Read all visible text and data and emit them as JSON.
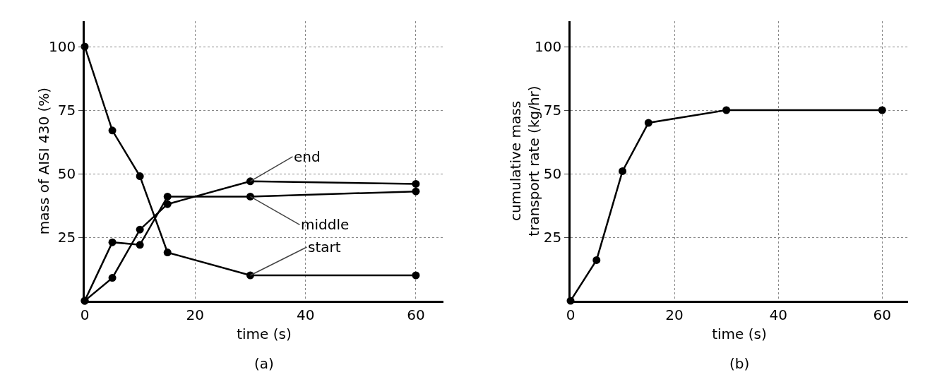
{
  "chart_data": [
    {
      "type": "line",
      "title": "(a)",
      "xlabel": "time (s)",
      "ylabel": "mass of AISI 430 (%)",
      "x": [
        0,
        5,
        10,
        15,
        30,
        60
      ],
      "xlim": [
        0,
        65
      ],
      "xticks": [
        0,
        20,
        40,
        60
      ],
      "ylim": [
        0,
        110
      ],
      "yticks": [
        25,
        50,
        75,
        100
      ],
      "grid": true,
      "legend": false,
      "marker": "circle",
      "line_style": "solid",
      "series": [
        {
          "name": "start",
          "color": "#000000",
          "values": [
            100,
            67,
            49,
            19,
            10,
            10
          ]
        },
        {
          "name": "middle",
          "color": "#000000",
          "values": [
            0,
            23,
            22,
            41,
            41,
            43
          ]
        },
        {
          "name": "end",
          "color": "#000000",
          "values": [
            0,
            9,
            28,
            38,
            47,
            46
          ]
        }
      ]
    },
    {
      "type": "line",
      "title": "(b)",
      "xlabel": "time (s)",
      "ylabel": "cumulative mass\ntransport rate (kg/hr)",
      "x": [
        0,
        5,
        10,
        15,
        30,
        60
      ],
      "xlim": [
        0,
        65
      ],
      "xticks": [
        0,
        20,
        40,
        60
      ],
      "ylim": [
        0,
        110
      ],
      "yticks": [
        25,
        50,
        75,
        100
      ],
      "grid": true,
      "legend": false,
      "marker": "circle",
      "line_style": "solid",
      "series": [
        {
          "color": "#000000",
          "values": [
            0,
            16,
            51,
            70,
            75,
            75
          ]
        }
      ]
    }
  ]
}
